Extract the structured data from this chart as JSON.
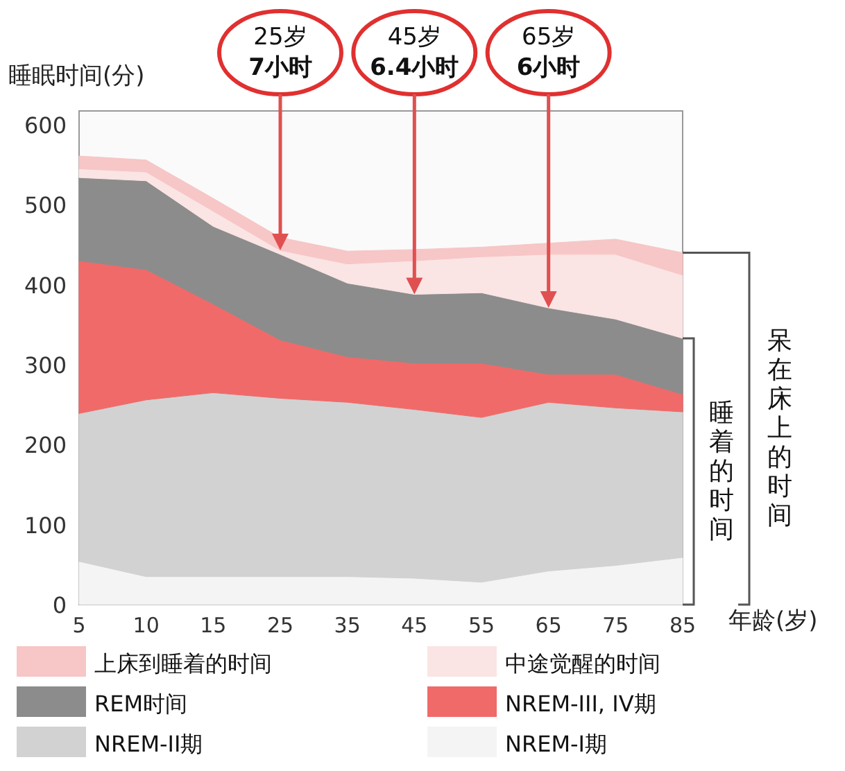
{
  "chart_data": {
    "type": "area",
    "stacked": true,
    "ylabel": "睡眠时间(分)",
    "xlabel": "年龄(岁)",
    "categories": [
      "5",
      "10",
      "15",
      "25",
      "35",
      "45",
      "55",
      "65",
      "75",
      "85"
    ],
    "ylim": [
      0,
      600
    ],
    "yticks": [
      0,
      100,
      200,
      300,
      400,
      500,
      600
    ],
    "legend": "bottom",
    "series": [
      {
        "name": "NREM-I期",
        "color": "#f4f4f4",
        "values": [
          54,
          35,
          35,
          35,
          35,
          33,
          28,
          42,
          49,
          59
        ]
      },
      {
        "name": "NREM-II期",
        "color": "#d2d2d2",
        "values": [
          185,
          221,
          230,
          223,
          218,
          211,
          206,
          211,
          197,
          182
        ]
      },
      {
        "name": "NREM-III, IV期",
        "color": "#f06a6a",
        "values": [
          191,
          163,
          111,
          73,
          57,
          58,
          68,
          35,
          42,
          22
        ]
      },
      {
        "name": "REM时间",
        "color": "#8c8c8c",
        "values": [
          104,
          111,
          97,
          107,
          92,
          86,
          88,
          83,
          69,
          70
        ]
      },
      {
        "name": "中途觉醒的时间",
        "color": "#fbe4e4",
        "values": [
          11,
          11,
          19,
          5,
          24,
          42,
          45,
          67,
          81,
          79
        ]
      },
      {
        "name": "上床到睡着的时间",
        "color": "#f7c6c6",
        "values": [
          16,
          15,
          16,
          16,
          16,
          14,
          12,
          14,
          19,
          28
        ]
      }
    ],
    "annotations": [
      {
        "text": "25岁\n**7小时**",
        "x": "25",
        "y": 443
      },
      {
        "text": "45岁\n**6.4小时**",
        "x": "45",
        "y": 388
      },
      {
        "text": "65岁\n**6小时**",
        "x": "65",
        "y": 371
      },
      "睡着的时间",
      "呆在床上的时间"
    ]
  }
}
